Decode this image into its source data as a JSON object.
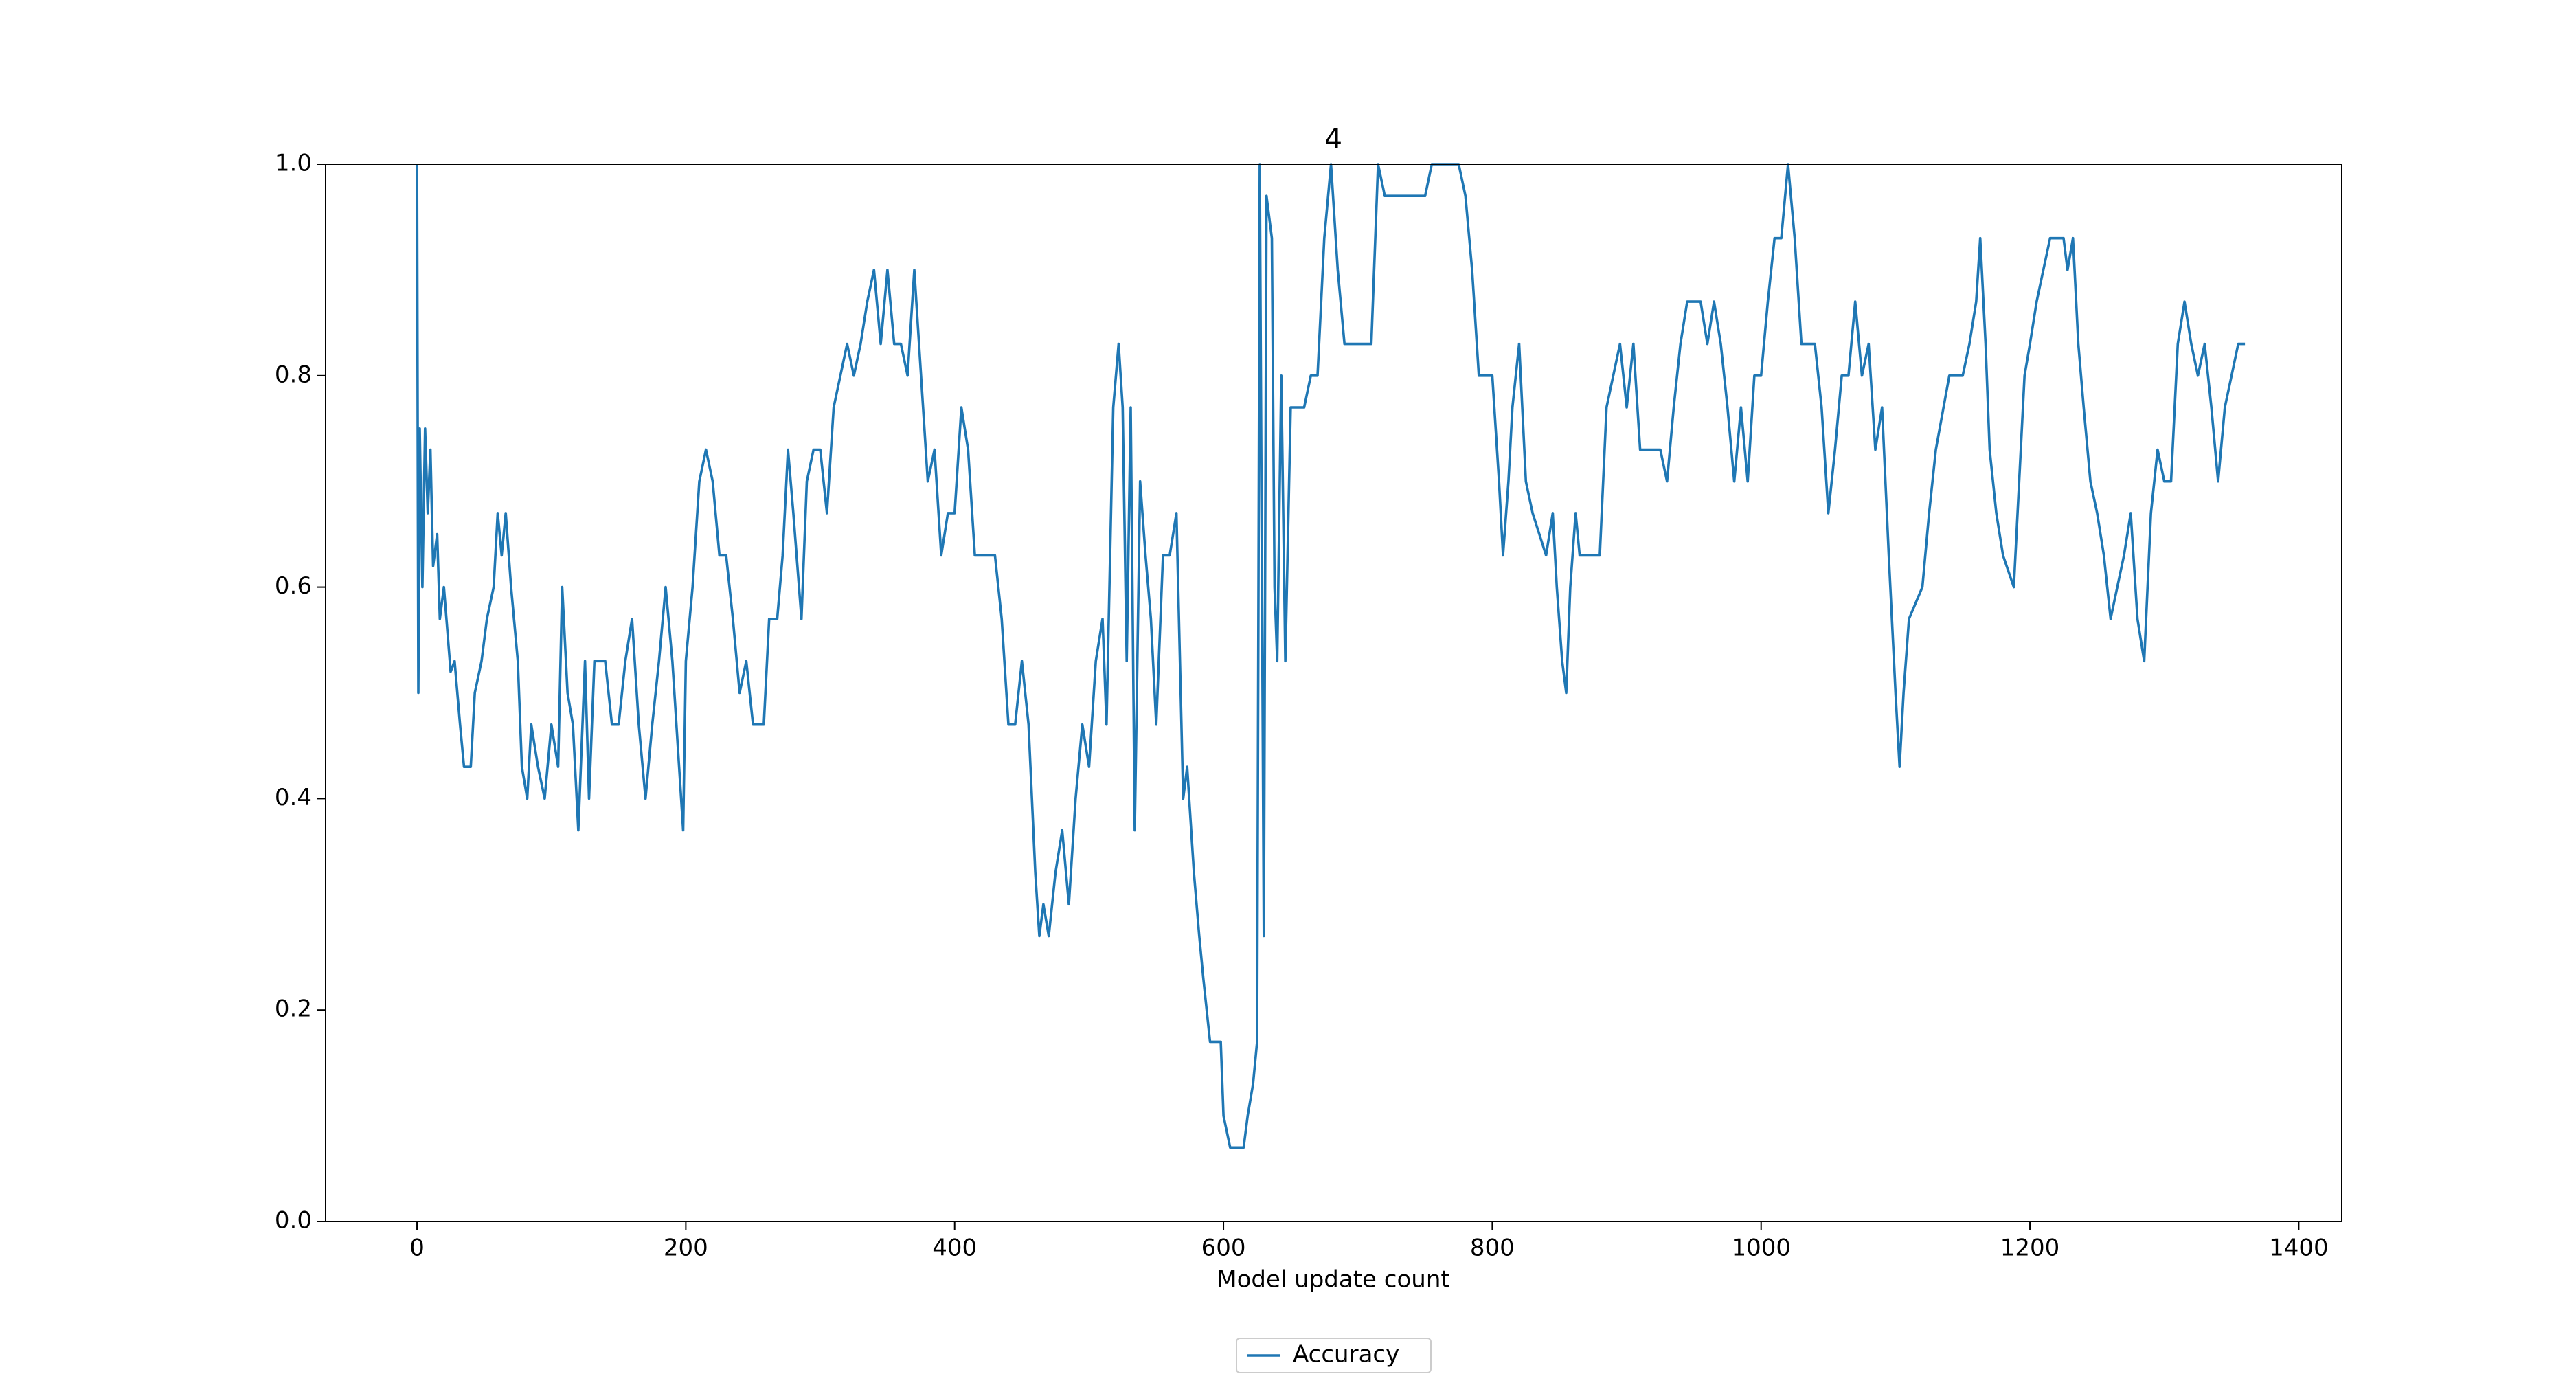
{
  "chart_data": {
    "type": "line",
    "title": "4",
    "x_label": "Model update count",
    "x": [
      0,
      1,
      2,
      4,
      6,
      8,
      10,
      12,
      15,
      17,
      20,
      25,
      28,
      32,
      35,
      40,
      43,
      48,
      52,
      57,
      60,
      63,
      66,
      70,
      75,
      78,
      82,
      85,
      90,
      95,
      100,
      105,
      108,
      112,
      116,
      120,
      125,
      128,
      132,
      140,
      145,
      150,
      155,
      160,
      165,
      170,
      175,
      180,
      185,
      190,
      195,
      198,
      200,
      205,
      210,
      215,
      220,
      225,
      230,
      235,
      240,
      245,
      250,
      258,
      262,
      268,
      272,
      276,
      280,
      286,
      290,
      295,
      300,
      305,
      310,
      315,
      320,
      325,
      330,
      335,
      340,
      345,
      350,
      355,
      360,
      365,
      370,
      375,
      380,
      385,
      390,
      395,
      400,
      405,
      410,
      415,
      420,
      430,
      435,
      440,
      445,
      450,
      455,
      460,
      463,
      466,
      470,
      475,
      480,
      485,
      490,
      495,
      500,
      505,
      510,
      513,
      518,
      522,
      525,
      528,
      531,
      534,
      538,
      542,
      546,
      550,
      555,
      560,
      565,
      570,
      573,
      578,
      582,
      585,
      590,
      598,
      600,
      605,
      615,
      618,
      622,
      625,
      627,
      630,
      632,
      636,
      638,
      640,
      643,
      646,
      650,
      660,
      665,
      670,
      675,
      680,
      685,
      690,
      700,
      710,
      715,
      720,
      730,
      750,
      755,
      775,
      780,
      785,
      790,
      800,
      805,
      808,
      812,
      815,
      820,
      825,
      830,
      840,
      845,
      848,
      852,
      855,
      858,
      862,
      865,
      880,
      885,
      890,
      895,
      900,
      905,
      910,
      925,
      930,
      935,
      940,
      945,
      955,
      960,
      965,
      970,
      975,
      980,
      985,
      990,
      995,
      1000,
      1005,
      1010,
      1015,
      1020,
      1025,
      1030,
      1040,
      1045,
      1050,
      1055,
      1060,
      1065,
      1070,
      1075,
      1080,
      1085,
      1090,
      1095,
      1100,
      1103,
      1106,
      1110,
      1120,
      1125,
      1130,
      1140,
      1150,
      1155,
      1160,
      1163,
      1167,
      1170,
      1175,
      1180,
      1188,
      1192,
      1196,
      1200,
      1205,
      1210,
      1215,
      1225,
      1228,
      1232,
      1236,
      1240,
      1245,
      1250,
      1255,
      1260,
      1265,
      1270,
      1275,
      1280,
      1285,
      1290,
      1295,
      1300,
      1305,
      1310,
      1315,
      1320,
      1325,
      1330,
      1335,
      1340,
      1345,
      1350,
      1355,
      1360
    ],
    "series": [
      {
        "name": "Accuracy",
        "color": "#1f77b4",
        "values": [
          1.0,
          0.5,
          0.75,
          0.6,
          0.75,
          0.67,
          0.73,
          0.62,
          0.65,
          0.57,
          0.6,
          0.52,
          0.53,
          0.47,
          0.43,
          0.43,
          0.5,
          0.53,
          0.57,
          0.6,
          0.67,
          0.63,
          0.67,
          0.6,
          0.53,
          0.43,
          0.4,
          0.47,
          0.43,
          0.4,
          0.47,
          0.43,
          0.6,
          0.5,
          0.47,
          0.37,
          0.53,
          0.4,
          0.53,
          0.53,
          0.47,
          0.47,
          0.53,
          0.57,
          0.47,
          0.4,
          0.47,
          0.53,
          0.6,
          0.53,
          0.43,
          0.37,
          0.53,
          0.6,
          0.7,
          0.73,
          0.7,
          0.63,
          0.63,
          0.57,
          0.5,
          0.53,
          0.47,
          0.47,
          0.57,
          0.57,
          0.63,
          0.73,
          0.67,
          0.57,
          0.7,
          0.73,
          0.73,
          0.67,
          0.77,
          0.8,
          0.83,
          0.8,
          0.83,
          0.87,
          0.9,
          0.83,
          0.9,
          0.83,
          0.83,
          0.8,
          0.9,
          0.8,
          0.7,
          0.73,
          0.63,
          0.67,
          0.67,
          0.77,
          0.73,
          0.63,
          0.63,
          0.63,
          0.57,
          0.47,
          0.47,
          0.53,
          0.47,
          0.33,
          0.27,
          0.3,
          0.27,
          0.33,
          0.37,
          0.3,
          0.4,
          0.47,
          0.43,
          0.53,
          0.57,
          0.47,
          0.77,
          0.83,
          0.77,
          0.53,
          0.77,
          0.37,
          0.7,
          0.63,
          0.57,
          0.47,
          0.63,
          0.63,
          0.67,
          0.4,
          0.43,
          0.33,
          0.27,
          0.23,
          0.17,
          0.17,
          0.1,
          0.07,
          0.07,
          0.1,
          0.13,
          0.17,
          1.0,
          0.27,
          0.97,
          0.93,
          0.6,
          0.53,
          0.8,
          0.53,
          0.77,
          0.77,
          0.8,
          0.8,
          0.93,
          1.0,
          0.9,
          0.83,
          0.83,
          0.83,
          1.0,
          0.97,
          0.97,
          0.97,
          1.0,
          1.0,
          0.97,
          0.9,
          0.8,
          0.8,
          0.7,
          0.63,
          0.7,
          0.77,
          0.83,
          0.7,
          0.67,
          0.63,
          0.67,
          0.6,
          0.53,
          0.5,
          0.6,
          0.67,
          0.63,
          0.63,
          0.77,
          0.8,
          0.83,
          0.77,
          0.83,
          0.73,
          0.73,
          0.7,
          0.77,
          0.83,
          0.87,
          0.87,
          0.83,
          0.87,
          0.83,
          0.77,
          0.7,
          0.77,
          0.7,
          0.8,
          0.8,
          0.87,
          0.93,
          0.93,
          1.0,
          0.93,
          0.83,
          0.83,
          0.77,
          0.67,
          0.73,
          0.8,
          0.8,
          0.87,
          0.8,
          0.83,
          0.73,
          0.77,
          0.63,
          0.5,
          0.43,
          0.5,
          0.57,
          0.6,
          0.67,
          0.73,
          0.8,
          0.8,
          0.83,
          0.87,
          0.93,
          0.83,
          0.73,
          0.67,
          0.63,
          0.6,
          0.7,
          0.8,
          0.83,
          0.87,
          0.9,
          0.93,
          0.93,
          0.9,
          0.93,
          0.83,
          0.77,
          0.7,
          0.67,
          0.63,
          0.57,
          0.6,
          0.63,
          0.67,
          0.57,
          0.53,
          0.67,
          0.73,
          0.7,
          0.7,
          0.83,
          0.87,
          0.83,
          0.8,
          0.83,
          0.77,
          0.7,
          0.77,
          0.8,
          0.83,
          0.83
        ]
      }
    ],
    "xlim": [
      -68,
      1432
    ],
    "ylim": [
      0,
      1
    ],
    "xticks": [
      0,
      200,
      400,
      600,
      800,
      1000,
      1200,
      1400
    ],
    "yticks": [
      {
        "value": 0,
        "label": "0.0"
      },
      0.2,
      0.4,
      0.6,
      0.8,
      {
        "value": 1,
        "label": "1.0"
      }
    ],
    "legend": "lower center"
  }
}
